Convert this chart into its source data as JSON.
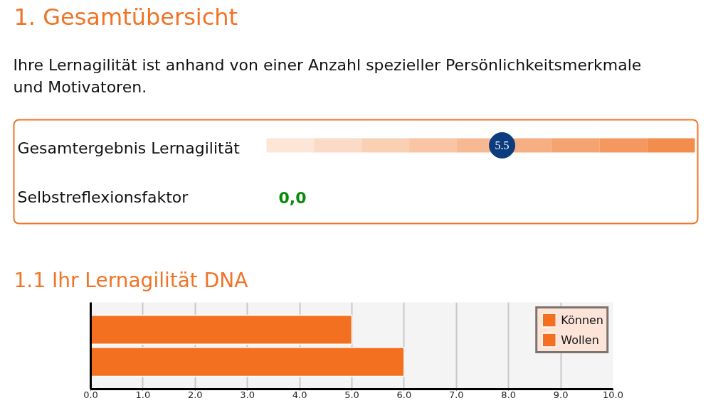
{
  "chart_data": [
    {
      "type": "other",
      "title": "1. Gesamtübersicht",
      "subtitle": "Ihre Lernagilität ist anhand von einer Anzahl spezieller Persönlichkeitsmerkmale und Motivatoren.",
      "categories": [
        "Gesamtergebnis Lernagilität",
        "Selbstreflexionsfaktor"
      ],
      "values": [
        5.5,
        0.0
      ],
      "value_labels": [
        "5.5",
        "0,0"
      ]
    },
    {
      "type": "bar",
      "orientation": "horizontal",
      "title": "1.1 Ihr Lernagilität DNA",
      "categories": [
        null,
        null
      ],
      "series": [
        {
          "name": "Können",
          "color": "#f37021",
          "values": [
            5.0,
            null
          ]
        },
        {
          "name": "Wollen",
          "color": "#f37021",
          "values": [
            null,
            6.0
          ]
        }
      ],
      "xlim": [
        0,
        10
      ],
      "xticks": [
        {
          "value": 0,
          "label": "0.0"
        },
        {
          "value": 1,
          "label": "1.0"
        },
        {
          "value": 2,
          "label": "2.0"
        },
        {
          "value": 3,
          "label": "3.0"
        },
        {
          "value": 4,
          "label": "4.0"
        },
        {
          "value": 5,
          "label": "5.0"
        },
        {
          "value": 6,
          "label": "6.0"
        },
        {
          "value": 7,
          "label": "7.0"
        },
        {
          "value": 8,
          "label": "8.0"
        },
        {
          "value": 9,
          "label": "9.0"
        },
        {
          "value": 10,
          "label": "10.0"
        }
      ],
      "grid": "x",
      "legend": "top right"
    }
  ]
}
